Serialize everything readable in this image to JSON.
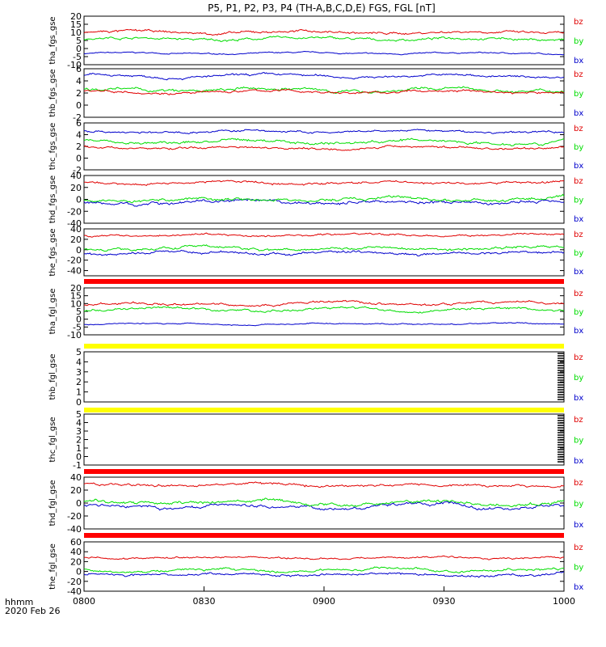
{
  "chart_data": {
    "type": "line",
    "title": "P5, P1, P2, P3, P4 (TH-A,B,C,D,E) FGS, FGL [nT]",
    "x_label": "hhmm",
    "date_label": "2020 Feb 26",
    "x_ticks": [
      "0800",
      "0830",
      "0900",
      "0930",
      "1000"
    ],
    "x_range_minutes": [
      0,
      120
    ],
    "components": [
      "bz",
      "by",
      "bx"
    ],
    "colors": {
      "bz": "#e00000",
      "by": "#00dd00",
      "bx": "#0000cc",
      "bar_red": "#ff0000",
      "bar_yellow": "#ffff00"
    },
    "panels": [
      {
        "ylabel": "tha_fgs_gse",
        "ylim": [
          -10,
          20
        ],
        "yticks": [
          "-10",
          "-5",
          "0",
          "5",
          "10",
          "15",
          "20"
        ],
        "series": {
          "bz": {
            "level": 10,
            "noise": 1.2
          },
          "by": {
            "level": 6,
            "noise": 1.2
          },
          "bx": {
            "level": -3,
            "noise": 0.6
          }
        }
      },
      {
        "ylabel": "thb_fgs_gse",
        "ylim": [
          -2,
          6
        ],
        "yticks": [
          "-2",
          "0",
          "2",
          "4",
          "6"
        ],
        "series": {
          "bz": {
            "level": 2.2,
            "noise": 0.3
          },
          "by": {
            "level": 2.5,
            "noise": 0.4
          },
          "bx": {
            "level": 4.8,
            "noise": 0.3
          }
        }
      },
      {
        "ylabel": "thc_fgs_gse",
        "ylim": [
          -2,
          6
        ],
        "yticks": [
          "-2",
          "0",
          "2",
          "4",
          "6"
        ],
        "series": {
          "bz": {
            "level": 1.8,
            "noise": 0.3
          },
          "by": {
            "level": 2.8,
            "noise": 0.4
          },
          "bx": {
            "level": 4.5,
            "noise": 0.3
          }
        }
      },
      {
        "ylabel": "thd_fgs_gse",
        "ylim": [
          -40,
          40
        ],
        "yticks": [
          "-40",
          "-20",
          "0",
          "20",
          "40"
        ],
        "series": {
          "bz": {
            "level": 28,
            "noise": 3
          },
          "by": {
            "level": 0,
            "noise": 4
          },
          "bx": {
            "level": -5,
            "noise": 4
          }
        }
      },
      {
        "ylabel": "the_fgs_gse",
        "ylim": [
          -50,
          40
        ],
        "yticks": [
          "-40",
          "-20",
          "0",
          "20",
          "40"
        ],
        "series": {
          "bz": {
            "level": 28,
            "noise": 3
          },
          "by": {
            "level": 3,
            "noise": 4
          },
          "bx": {
            "level": -6,
            "noise": 4
          }
        }
      },
      {
        "ylabel": "tha_fgl_gse",
        "ylim": [
          -10,
          20
        ],
        "yticks": [
          "-10",
          "-5",
          "0",
          "5",
          "10",
          "15",
          "20"
        ],
        "series": {
          "bz": {
            "level": 10,
            "noise": 1.2
          },
          "by": {
            "level": 6,
            "noise": 1.2
          },
          "bx": {
            "level": -3,
            "noise": 0.6
          }
        }
      },
      {
        "ylabel": "thb_fgl_gse",
        "ylim": [
          0,
          5
        ],
        "yticks": [
          "0",
          "1",
          "2",
          "3",
          "4",
          "5"
        ],
        "series": {}
      },
      {
        "ylabel": "thc_fgl_gse",
        "ylim": [
          -1,
          5
        ],
        "yticks": [
          "-1",
          "0",
          "1",
          "2",
          "3",
          "4",
          "5"
        ],
        "series": {}
      },
      {
        "ylabel": "thd_fgl_gse",
        "ylim": [
          -40,
          40
        ],
        "yticks": [
          "-40",
          "-20",
          "0",
          "20",
          "40"
        ],
        "series": {
          "bz": {
            "level": 28,
            "noise": 3
          },
          "by": {
            "level": 0,
            "noise": 4
          },
          "bx": {
            "level": -5,
            "noise": 4
          }
        }
      },
      {
        "ylabel": "the_fgl_gse",
        "ylim": [
          -40,
          60
        ],
        "yticks": [
          "-40",
          "-20",
          "0",
          "20",
          "40",
          "60"
        ],
        "series": {
          "bz": {
            "level": 28,
            "noise": 3
          },
          "by": {
            "level": 3,
            "noise": 4
          },
          "bx": {
            "level": -6,
            "noise": 4
          }
        }
      }
    ],
    "status_bars": [
      {
        "after_panel": 4,
        "color": "bar_red"
      },
      {
        "after_panel": 5,
        "color": "bar_yellow"
      },
      {
        "after_panel": 6,
        "color": "bar_yellow"
      },
      {
        "after_panel": 7,
        "color": "bar_red"
      },
      {
        "after_panel": 8,
        "color": "bar_red"
      }
    ]
  }
}
